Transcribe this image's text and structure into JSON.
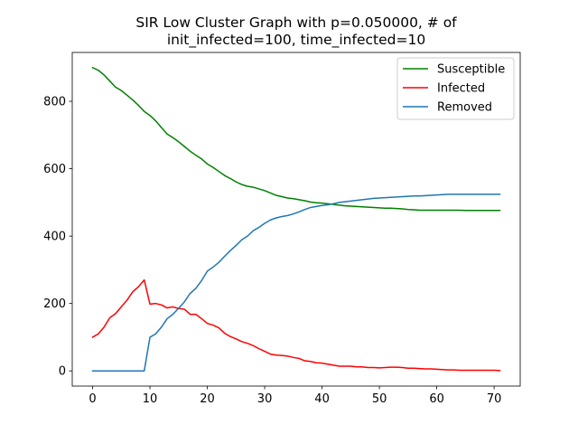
{
  "chart_data": {
    "type": "line",
    "title_line1": "SIR Low Cluster Graph with p=0.050000, # of",
    "title_line2": "init_infected=100, time_infected=10",
    "xlabel": "",
    "ylabel": "",
    "xlim": [
      -3.55,
      74.55
    ],
    "ylim": [
      -45,
      945
    ],
    "xticks": [
      0,
      10,
      20,
      30,
      40,
      50,
      60,
      70
    ],
    "yticks": [
      0,
      200,
      400,
      600,
      800
    ],
    "grid": false,
    "legend_position": "upper right",
    "series": [
      {
        "name": "Susceptible",
        "color": "#008000",
        "values": [
          900,
          892,
          878,
          860,
          842,
          832,
          818,
          804,
          788,
          770,
          758,
          742,
          722,
          703,
          692,
          680,
          666,
          652,
          640,
          629,
          614,
          604,
          592,
          580,
          571,
          561,
          553,
          548,
          545,
          540,
          535,
          528,
          521,
          517,
          513,
          511,
          508,
          505,
          501,
          499,
          498,
          496,
          494,
          492,
          490,
          489,
          488,
          487,
          486,
          485,
          484,
          483,
          483,
          482,
          481,
          479,
          478,
          477,
          477,
          477,
          477,
          477,
          477,
          477,
          477,
          476,
          476,
          476,
          476,
          476,
          476,
          476
        ]
      },
      {
        "name": "Infected",
        "color": "#ff0000",
        "values": [
          100,
          110,
          130,
          158,
          170,
          190,
          210,
          235,
          250,
          270,
          198,
          200,
          196,
          187,
          190,
          185,
          183,
          168,
          168,
          155,
          141,
          136,
          128,
          112,
          102,
          95,
          87,
          82,
          75,
          66,
          58,
          50,
          47,
          46,
          44,
          40,
          37,
          30,
          28,
          24,
          23,
          20,
          17,
          14,
          14,
          14,
          12,
          12,
          10,
          10,
          9,
          10,
          11,
          11,
          10,
          8,
          8,
          7,
          6,
          6,
          5,
          4,
          3,
          3,
          2,
          2,
          2,
          2,
          2,
          2,
          2,
          1
        ]
      },
      {
        "name": "Removed",
        "color": "#1f77b4",
        "values": [
          0,
          0,
          0,
          0,
          0,
          0,
          0,
          0,
          0,
          0,
          100,
          110,
          130,
          155,
          168,
          186,
          205,
          230,
          245,
          268,
          296,
          308,
          322,
          340,
          357,
          372,
          389,
          400,
          416,
          426,
          438,
          448,
          454,
          458,
          461,
          466,
          472,
          479,
          485,
          488,
          491,
          493,
          496,
          500,
          502,
          504,
          506,
          508,
          510,
          512,
          513,
          514,
          515,
          516,
          517,
          518,
          519,
          519,
          520,
          521,
          522,
          523,
          524,
          524,
          524,
          524,
          524,
          524,
          524,
          524,
          524,
          524
        ]
      }
    ]
  }
}
